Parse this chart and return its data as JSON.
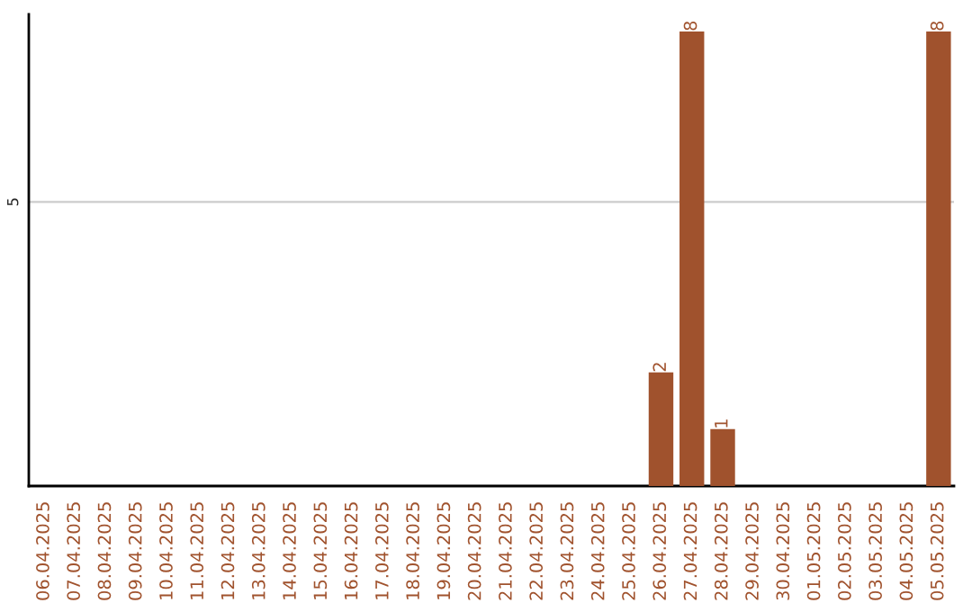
{
  "chart_data": {
    "type": "bar",
    "ylim": [
      0,
      8.3
    ],
    "yticks": [
      5
    ],
    "grid": "y",
    "categories": [
      "06.04.2025",
      "07.04.2025",
      "08.04.2025",
      "09.04.2025",
      "10.04.2025",
      "11.04.2025",
      "12.04.2025",
      "13.04.2025",
      "14.04.2025",
      "15.04.2025",
      "16.04.2025",
      "17.04.2025",
      "18.04.2025",
      "19.04.2025",
      "20.04.2025",
      "21.04.2025",
      "22.04.2025",
      "23.04.2025",
      "24.04.2025",
      "25.04.2025",
      "26.04.2025",
      "27.04.2025",
      "28.04.2025",
      "29.04.2025",
      "30.04.2025",
      "01.05.2025",
      "02.05.2025",
      "03.05.2025",
      "04.05.2025",
      "05.05.2025"
    ],
    "values": [
      null,
      null,
      null,
      null,
      null,
      null,
      null,
      null,
      null,
      null,
      null,
      null,
      null,
      null,
      null,
      null,
      null,
      null,
      null,
      null,
      2,
      8,
      1,
      null,
      null,
      null,
      null,
      null,
      null,
      8
    ],
    "data_labels": true,
    "color": "#a0522d"
  }
}
